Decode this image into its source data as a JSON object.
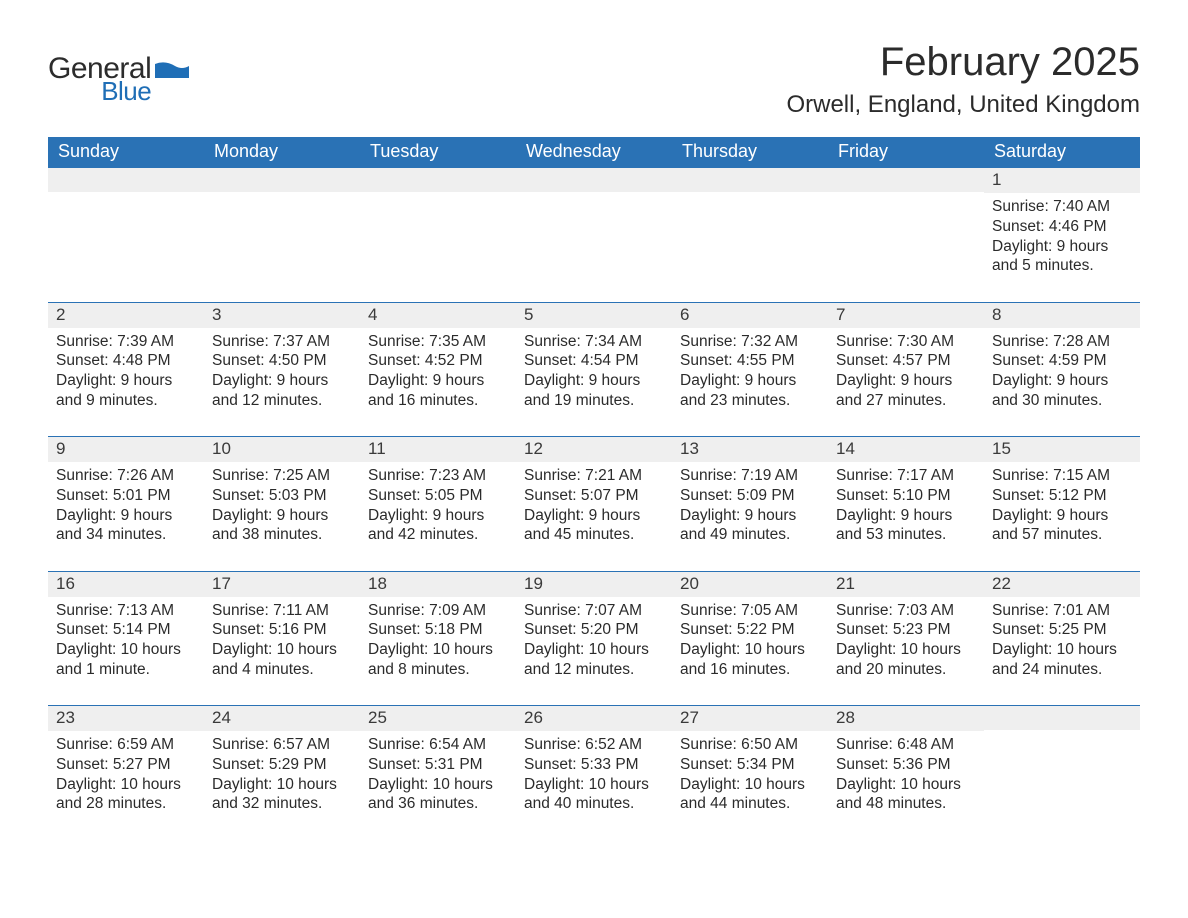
{
  "logo": {
    "general": "General",
    "blue": "Blue",
    "flag_color": "#1f6eb6"
  },
  "header": {
    "month_title": "February 2025",
    "location": "Orwell, England, United Kingdom"
  },
  "calendar": {
    "accent_color": "#2a72b5",
    "row_bg": "#efefef",
    "text_color": "#2b2b2b",
    "day_headers": [
      "Sunday",
      "Monday",
      "Tuesday",
      "Wednesday",
      "Thursday",
      "Friday",
      "Saturday"
    ],
    "weeks": [
      [
        {
          "n": "",
          "sunrise": "",
          "sunset": "",
          "daylight": ""
        },
        {
          "n": "",
          "sunrise": "",
          "sunset": "",
          "daylight": ""
        },
        {
          "n": "",
          "sunrise": "",
          "sunset": "",
          "daylight": ""
        },
        {
          "n": "",
          "sunrise": "",
          "sunset": "",
          "daylight": ""
        },
        {
          "n": "",
          "sunrise": "",
          "sunset": "",
          "daylight": ""
        },
        {
          "n": "",
          "sunrise": "",
          "sunset": "",
          "daylight": ""
        },
        {
          "n": "1",
          "sunrise": "Sunrise: 7:40 AM",
          "sunset": "Sunset: 4:46 PM",
          "daylight": "Daylight: 9 hours and 5 minutes."
        }
      ],
      [
        {
          "n": "2",
          "sunrise": "Sunrise: 7:39 AM",
          "sunset": "Sunset: 4:48 PM",
          "daylight": "Daylight: 9 hours and 9 minutes."
        },
        {
          "n": "3",
          "sunrise": "Sunrise: 7:37 AM",
          "sunset": "Sunset: 4:50 PM",
          "daylight": "Daylight: 9 hours and 12 minutes."
        },
        {
          "n": "4",
          "sunrise": "Sunrise: 7:35 AM",
          "sunset": "Sunset: 4:52 PM",
          "daylight": "Daylight: 9 hours and 16 minutes."
        },
        {
          "n": "5",
          "sunrise": "Sunrise: 7:34 AM",
          "sunset": "Sunset: 4:54 PM",
          "daylight": "Daylight: 9 hours and 19 minutes."
        },
        {
          "n": "6",
          "sunrise": "Sunrise: 7:32 AM",
          "sunset": "Sunset: 4:55 PM",
          "daylight": "Daylight: 9 hours and 23 minutes."
        },
        {
          "n": "7",
          "sunrise": "Sunrise: 7:30 AM",
          "sunset": "Sunset: 4:57 PM",
          "daylight": "Daylight: 9 hours and 27 minutes."
        },
        {
          "n": "8",
          "sunrise": "Sunrise: 7:28 AM",
          "sunset": "Sunset: 4:59 PM",
          "daylight": "Daylight: 9 hours and 30 minutes."
        }
      ],
      [
        {
          "n": "9",
          "sunrise": "Sunrise: 7:26 AM",
          "sunset": "Sunset: 5:01 PM",
          "daylight": "Daylight: 9 hours and 34 minutes."
        },
        {
          "n": "10",
          "sunrise": "Sunrise: 7:25 AM",
          "sunset": "Sunset: 5:03 PM",
          "daylight": "Daylight: 9 hours and 38 minutes."
        },
        {
          "n": "11",
          "sunrise": "Sunrise: 7:23 AM",
          "sunset": "Sunset: 5:05 PM",
          "daylight": "Daylight: 9 hours and 42 minutes."
        },
        {
          "n": "12",
          "sunrise": "Sunrise: 7:21 AM",
          "sunset": "Sunset: 5:07 PM",
          "daylight": "Daylight: 9 hours and 45 minutes."
        },
        {
          "n": "13",
          "sunrise": "Sunrise: 7:19 AM",
          "sunset": "Sunset: 5:09 PM",
          "daylight": "Daylight: 9 hours and 49 minutes."
        },
        {
          "n": "14",
          "sunrise": "Sunrise: 7:17 AM",
          "sunset": "Sunset: 5:10 PM",
          "daylight": "Daylight: 9 hours and 53 minutes."
        },
        {
          "n": "15",
          "sunrise": "Sunrise: 7:15 AM",
          "sunset": "Sunset: 5:12 PM",
          "daylight": "Daylight: 9 hours and 57 minutes."
        }
      ],
      [
        {
          "n": "16",
          "sunrise": "Sunrise: 7:13 AM",
          "sunset": "Sunset: 5:14 PM",
          "daylight": "Daylight: 10 hours and 1 minute."
        },
        {
          "n": "17",
          "sunrise": "Sunrise: 7:11 AM",
          "sunset": "Sunset: 5:16 PM",
          "daylight": "Daylight: 10 hours and 4 minutes."
        },
        {
          "n": "18",
          "sunrise": "Sunrise: 7:09 AM",
          "sunset": "Sunset: 5:18 PM",
          "daylight": "Daylight: 10 hours and 8 minutes."
        },
        {
          "n": "19",
          "sunrise": "Sunrise: 7:07 AM",
          "sunset": "Sunset: 5:20 PM",
          "daylight": "Daylight: 10 hours and 12 minutes."
        },
        {
          "n": "20",
          "sunrise": "Sunrise: 7:05 AM",
          "sunset": "Sunset: 5:22 PM",
          "daylight": "Daylight: 10 hours and 16 minutes."
        },
        {
          "n": "21",
          "sunrise": "Sunrise: 7:03 AM",
          "sunset": "Sunset: 5:23 PM",
          "daylight": "Daylight: 10 hours and 20 minutes."
        },
        {
          "n": "22",
          "sunrise": "Sunrise: 7:01 AM",
          "sunset": "Sunset: 5:25 PM",
          "daylight": "Daylight: 10 hours and 24 minutes."
        }
      ],
      [
        {
          "n": "23",
          "sunrise": "Sunrise: 6:59 AM",
          "sunset": "Sunset: 5:27 PM",
          "daylight": "Daylight: 10 hours and 28 minutes."
        },
        {
          "n": "24",
          "sunrise": "Sunrise: 6:57 AM",
          "sunset": "Sunset: 5:29 PM",
          "daylight": "Daylight: 10 hours and 32 minutes."
        },
        {
          "n": "25",
          "sunrise": "Sunrise: 6:54 AM",
          "sunset": "Sunset: 5:31 PM",
          "daylight": "Daylight: 10 hours and 36 minutes."
        },
        {
          "n": "26",
          "sunrise": "Sunrise: 6:52 AM",
          "sunset": "Sunset: 5:33 PM",
          "daylight": "Daylight: 10 hours and 40 minutes."
        },
        {
          "n": "27",
          "sunrise": "Sunrise: 6:50 AM",
          "sunset": "Sunset: 5:34 PM",
          "daylight": "Daylight: 10 hours and 44 minutes."
        },
        {
          "n": "28",
          "sunrise": "Sunrise: 6:48 AM",
          "sunset": "Sunset: 5:36 PM",
          "daylight": "Daylight: 10 hours and 48 minutes."
        },
        {
          "n": "",
          "sunrise": "",
          "sunset": "",
          "daylight": ""
        }
      ]
    ]
  }
}
